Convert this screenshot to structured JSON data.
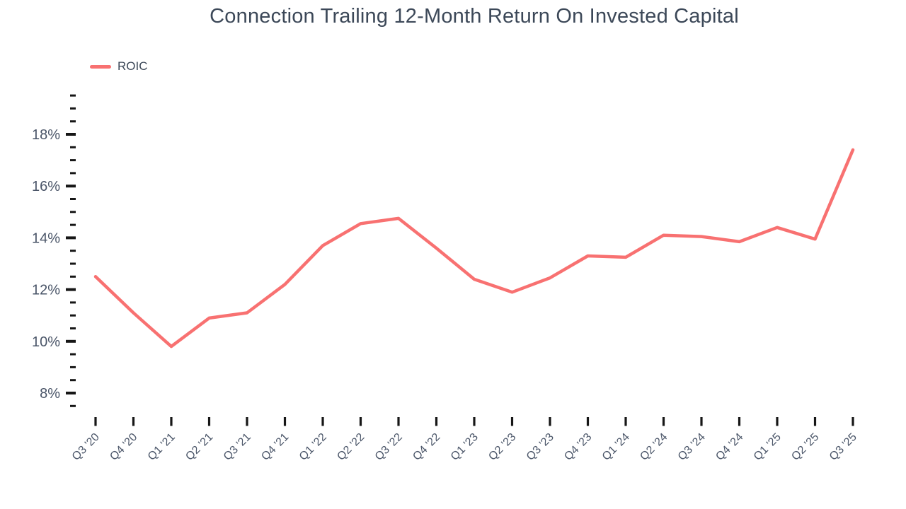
{
  "chart_data": {
    "type": "line",
    "title": "Connection Trailing 12-Month Return On Invested Capital",
    "categories": [
      "Q3 '20",
      "Q4 '20",
      "Q1 '21",
      "Q2 '21",
      "Q3 '21",
      "Q4 '21",
      "Q1 '22",
      "Q2 '22",
      "Q3 '22",
      "Q4 '22",
      "Q1 '23",
      "Q2 '23",
      "Q3 '23",
      "Q4 '23",
      "Q1 '24",
      "Q2 '24",
      "Q3 '24",
      "Q4 '24",
      "Q1 '25",
      "Q2 '25",
      "Q3 '25"
    ],
    "series": [
      {
        "name": "ROIC",
        "color": "#f87171",
        "values": [
          12.5,
          11.1,
          9.8,
          10.9,
          11.1,
          12.2,
          13.7,
          14.55,
          14.75,
          13.6,
          12.4,
          11.9,
          12.45,
          13.3,
          13.25,
          14.1,
          14.05,
          13.85,
          14.4,
          13.95,
          17.4
        ]
      }
    ],
    "unit": "%",
    "xlabel": "",
    "ylabel": "",
    "ylim": [
      7.5,
      19.5
    ],
    "y_major_ticks": [
      8,
      10,
      12,
      14,
      16,
      18
    ],
    "y_major_tick_labels": [
      "8%",
      "10%",
      "12%",
      "14%",
      "16%",
      "18%"
    ],
    "y_minor_tick_step": 0.5,
    "grid": "off",
    "legend_position": "top-left"
  },
  "colors": {
    "line": "#f87171",
    "title_text": "#3c4858",
    "axis_label_text": "#4a5568",
    "tick_mark": "#161616",
    "background": "#ffffff"
  }
}
